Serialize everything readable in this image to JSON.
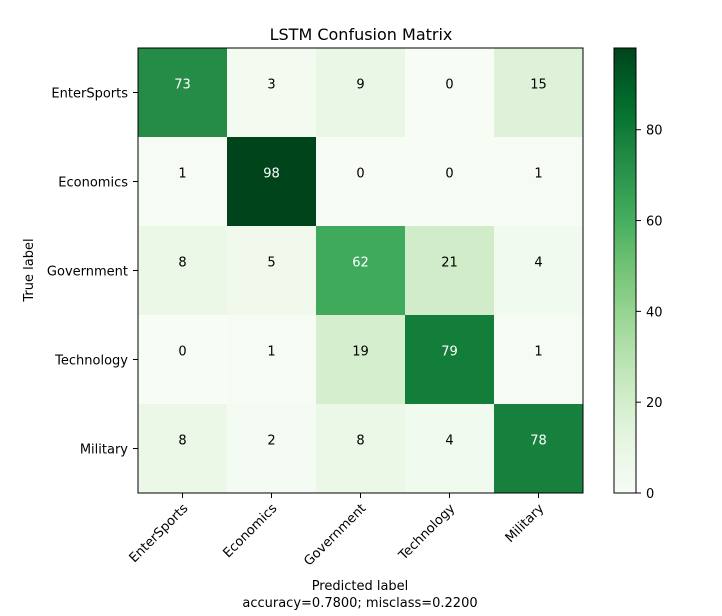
{
  "chart_data": {
    "type": "heatmap",
    "title": "LSTM Confusion Matrix",
    "xlabel": "Predicted label",
    "ylabel": "True label",
    "footer": "accuracy=0.7800; misclass=0.2200",
    "labels": [
      "EnterSports",
      "Economics",
      "Government",
      "Technology",
      "Military"
    ],
    "matrix": [
      [
        73,
        3,
        9,
        0,
        15
      ],
      [
        1,
        98,
        0,
        0,
        1
      ],
      [
        8,
        5,
        62,
        21,
        4
      ],
      [
        0,
        1,
        19,
        79,
        1
      ],
      [
        8,
        2,
        8,
        4,
        78
      ]
    ],
    "colormap": "Greens",
    "colorbar": {
      "min": 0,
      "max": 98,
      "ticks": [
        0,
        20,
        40,
        60,
        80
      ]
    },
    "grid": false
  }
}
